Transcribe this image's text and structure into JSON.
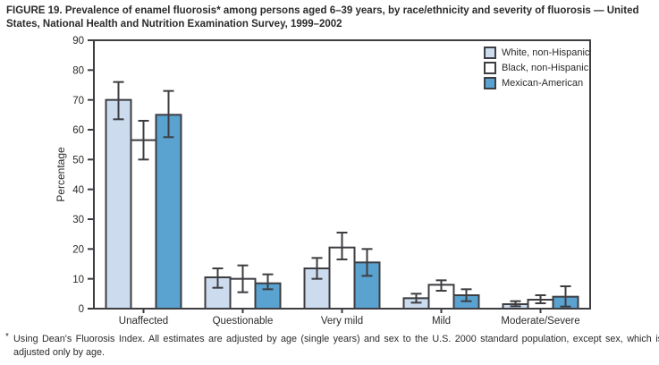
{
  "figure": {
    "title": "FIGURE 19. Prevalence of enamel fluorosis* among persons aged 6–39 years, by race/ethnicity and severity of fluorosis — United States, National Health and Nutrition Examination Survey, 1999–2002",
    "footnote_marker": "*",
    "footnote": "Using Dean's Fluorosis Index. All estimates are adjusted by age (single years) and sex to the U.S. 2000 standard population, except sex, which is adjusted only by age."
  },
  "chart_data": {
    "type": "bar",
    "title": "",
    "xlabel": "",
    "ylabel": "Percentage",
    "ylim": [
      0,
      90
    ],
    "ytick_step": 10,
    "grid": false,
    "error_bars": true,
    "legend_position": "top-right-inside",
    "categories": [
      "Unaffected",
      "Questionable",
      "Very mild",
      "Mild",
      "Moderate/Severe"
    ],
    "series": [
      {
        "name": "White, non-Hispanic",
        "color": "#ccdcee",
        "values": [
          70,
          10.5,
          13.5,
          3.5,
          1.5
        ],
        "ci_low": [
          63.5,
          7,
          10,
          2,
          0.8
        ],
        "ci_high": [
          76,
          13.5,
          17,
          5,
          2.5
        ]
      },
      {
        "name": "Black, non-Hispanic",
        "color": "#ffffff",
        "values": [
          56.5,
          10,
          20.5,
          8,
          3
        ],
        "ci_low": [
          50,
          5.5,
          16.5,
          6,
          1.8
        ],
        "ci_high": [
          63,
          14.5,
          25.5,
          9.5,
          4.5
        ]
      },
      {
        "name": "Mexican-American",
        "color": "#5aa3d0",
        "values": [
          65,
          8.5,
          15.5,
          4.5,
          4
        ],
        "ci_low": [
          57.5,
          6.5,
          11,
          2.5,
          0.7
        ],
        "ci_high": [
          73,
          11.5,
          20,
          6.5,
          7.5
        ]
      }
    ]
  },
  "colors": {
    "frame": "#3d3d42",
    "error_bar": "#3d3d42",
    "text": "#2a2a2a",
    "background": "#ffffff"
  }
}
